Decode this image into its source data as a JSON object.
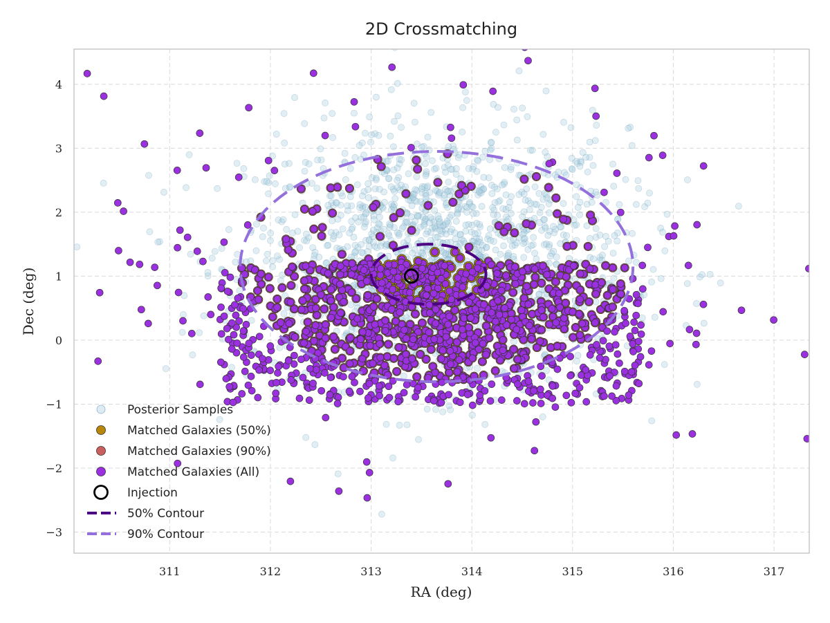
{
  "chart_data": {
    "type": "scatter",
    "title": "2D Crossmatching",
    "xlabel": "RA (deg)",
    "ylabel": "Dec (deg)",
    "xlim": [
      310.05,
      317.35
    ],
    "ylim": [
      -3.33,
      4.55
    ],
    "x_ticks": [
      311,
      312,
      313,
      314,
      315,
      316,
      317
    ],
    "y_ticks": [
      -3,
      -2,
      -1,
      0,
      1,
      2,
      3,
      4
    ],
    "x_tick_labels": [
      "311",
      "312",
      "313",
      "314",
      "315",
      "316",
      "317"
    ],
    "y_tick_labels": [
      "−3",
      "−2",
      "−1",
      "0",
      "1",
      "2",
      "3",
      "4"
    ],
    "grid": true,
    "legend_position": "lower-left",
    "injection": {
      "ra": 313.4,
      "dec": 1.0
    },
    "contours": [
      {
        "name": "50% Contour",
        "center_ra": 313.57,
        "center_dec": 1.03,
        "half_width_ra": 0.57,
        "half_height_dec": 0.47
      },
      {
        "name": "90% Contour",
        "center_ra": 313.65,
        "center_dec": 1.15,
        "half_width_ra": 1.95,
        "half_height_dec": 1.8
      }
    ],
    "series": [
      {
        "name": "Posterior Samples",
        "color": "#a9cde0",
        "edge": "#5d8fb0",
        "alpha": 0.35,
        "distribution": {
          "center_ra": 313.65,
          "center_dec": 1.3,
          "sigma_ra": 0.95,
          "sigma_dec": 1.0,
          "approx_count": 1600
        }
      },
      {
        "name": "Matched Galaxies (50%)",
        "color": "#b8860b",
        "edge": "#333333"
      },
      {
        "name": "Matched Galaxies (90%)",
        "color": "#c9605e",
        "edge": "#333333"
      },
      {
        "name": "Matched Galaxies (All)",
        "color": "#9b30e0",
        "edge": "#333333",
        "distribution": "galaxies concentrated in a band at Dec between about -1 and 1.25, sparser elsewhere",
        "approx_count": 1200
      }
    ],
    "legend": [
      {
        "label": "Posterior Samples",
        "marker": "circle",
        "color": "#cfe2ec"
      },
      {
        "label": "Matched Galaxies (50%)",
        "marker": "circle",
        "color": "#b8860b"
      },
      {
        "label": "Matched Galaxies (90%)",
        "marker": "circle",
        "color": "#c9605e"
      },
      {
        "label": "Matched Galaxies (All)",
        "marker": "circle",
        "color": "#9b30e0"
      },
      {
        "label": "Injection",
        "marker": "ring",
        "color": "#000000"
      },
      {
        "label": "50% Contour",
        "marker": "dashed-line",
        "color": "#4b0082"
      },
      {
        "label": "90% Contour",
        "marker": "dashed-line",
        "color": "#9370db"
      }
    ]
  }
}
